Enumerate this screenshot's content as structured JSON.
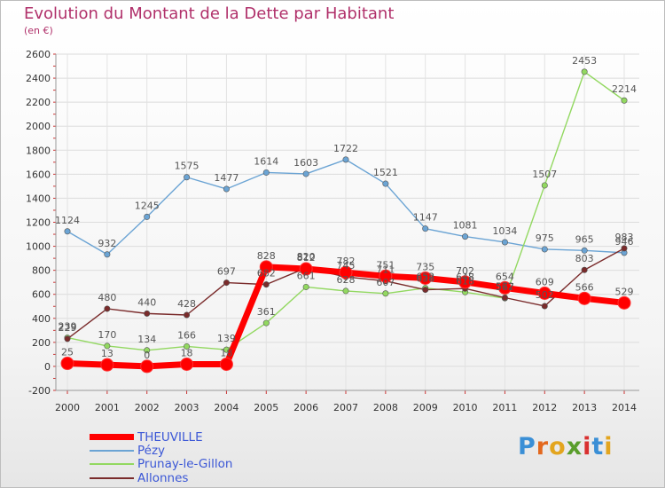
{
  "title": "Evolution du Montant de la Dette par Habitant",
  "unit_label": "(en €)",
  "logo": {
    "text": "Proxiti",
    "letters": [
      "P",
      "r",
      "o",
      "x",
      "i",
      "t",
      "i"
    ],
    "colors": [
      "#3a8fd6",
      "#e3681e",
      "#e3a51e",
      "#5a9e2c",
      "#d93030",
      "#3a8fd6",
      "#e3a51e"
    ]
  },
  "chart_data": {
    "type": "line",
    "title": "Evolution du Montant de la Dette par Habitant",
    "ylabel": "(en €)",
    "xlabel": "",
    "x": [
      "2000",
      "2001",
      "2002",
      "2003",
      "2004",
      "2005",
      "2006",
      "2007",
      "2008",
      "2009",
      "2010",
      "2011",
      "2012",
      "2013",
      "2014"
    ],
    "ylim": [
      -200,
      2600
    ],
    "yticks": [
      -200,
      0,
      200,
      400,
      600,
      800,
      1000,
      1200,
      1400,
      1600,
      1800,
      2000,
      2200,
      2400,
      2600
    ],
    "grid": true,
    "legend_position": "bottom-left",
    "series": [
      {
        "name": "THEUVILLE",
        "color": "#ff0000",
        "labelColor": "#555555",
        "width": 7,
        "marker": 7,
        "values": [
          25,
          13,
          0,
          18,
          18,
          828,
          812,
          782,
          751,
          735,
          702,
          654,
          609,
          566,
          529
        ]
      },
      {
        "name": "Pézy",
        "color": "#6ba4d4",
        "labelColor": "#555555",
        "width": 1.4,
        "marker": 3.2,
        "values": [
          1124,
          932,
          1245,
          1575,
          1477,
          1614,
          1603,
          1722,
          1521,
          1147,
          1081,
          1034,
          975,
          965,
          946
        ]
      },
      {
        "name": "Prunay-le-Gillon",
        "color": "#92d860",
        "labelColor": "#555555",
        "width": 1.4,
        "marker": 3.2,
        "values": [
          239,
          170,
          134,
          166,
          139,
          361,
          661,
          628,
          607,
          652,
          618,
          567,
          1507,
          2453,
          2214
        ]
      },
      {
        "name": "Allonnes",
        "color": "#7a2b2b",
        "labelColor": "#555555",
        "width": 1.4,
        "marker": 3.2,
        "values": [
          229,
          480,
          440,
          428,
          697,
          682,
          820,
          745,
          711,
          638,
          648,
          572,
          502,
          803,
          983
        ]
      }
    ]
  }
}
